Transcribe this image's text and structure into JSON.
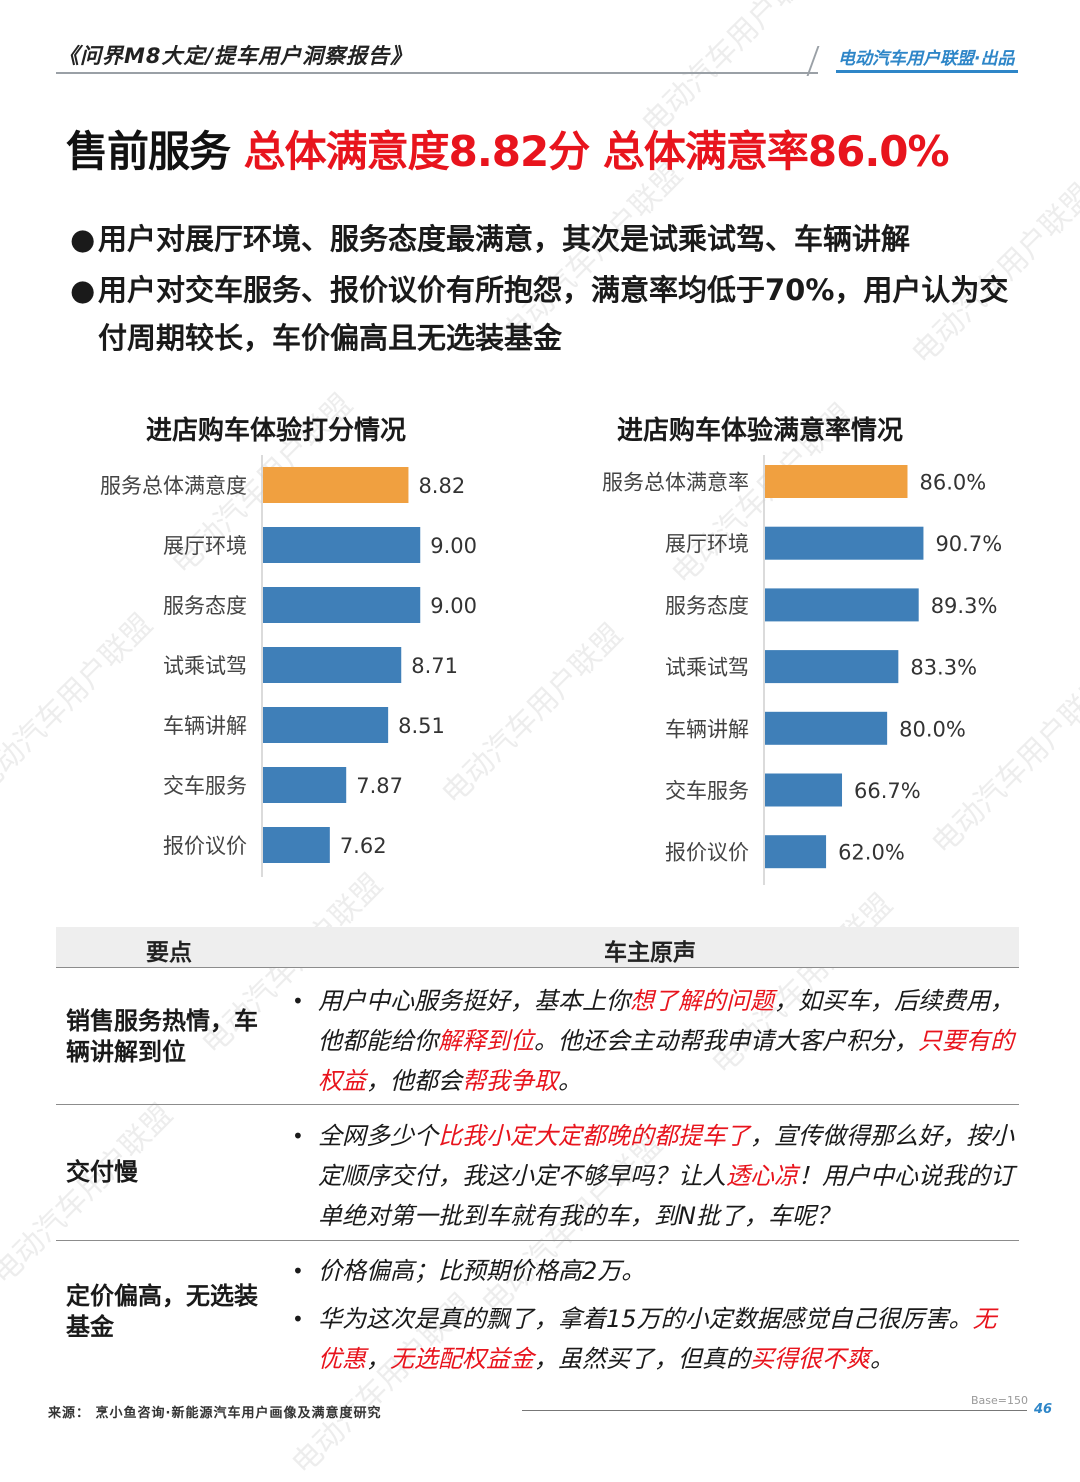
{
  "header": {
    "report_title": "《问界M8大定/提车用户洞察报告》",
    "brand": "电动汽车用户联盟·出品"
  },
  "headline": {
    "part1": "售前服务 ",
    "part2": "总体满意度8.82分 总体满意率86.0%"
  },
  "bullets": [
    "用户对展厅环境、服务态度最满意，其次是试乘试驾、车辆讲解",
    "用户对交车服务、报价议价有所抱怨，满意率均低于70%，用户认为交付周期较长，车价偏高且无选装基金"
  ],
  "bullet_symbol": "●",
  "chart_data": [
    {
      "type": "bar",
      "orientation": "horizontal",
      "title": "进店购车体验打分情况",
      "categories": [
        "服务总体满意度",
        "展厅环境",
        "服务态度",
        "试乘试驾",
        "车辆讲解",
        "交车服务",
        "报价议价"
      ],
      "values": [
        8.82,
        9.0,
        9.0,
        8.71,
        8.51,
        7.87,
        7.62
      ],
      "labels": [
        "8.82",
        "9.00",
        "9.00",
        "8.71",
        "8.51",
        "7.87",
        "7.62"
      ],
      "colors": [
        "#f0a040",
        "#3f7fb8",
        "#3f7fb8",
        "#3f7fb8",
        "#3f7fb8",
        "#3f7fb8",
        "#3f7fb8"
      ],
      "xlim": [
        6.6,
        9.5
      ],
      "grid": false,
      "legend": "none"
    },
    {
      "type": "bar",
      "orientation": "horizontal",
      "title": "进店购车体验满意率情况",
      "categories": [
        "服务总体满意率",
        "展厅环境",
        "服务态度",
        "试乘试驾",
        "车辆讲解",
        "交车服务",
        "报价议价"
      ],
      "values": [
        86.0,
        90.7,
        89.3,
        83.3,
        80.0,
        66.7,
        62.0
      ],
      "labels": [
        "86.0%",
        "90.7%",
        "89.3%",
        "83.3%",
        "80.0%",
        "66.7%",
        "62.0%"
      ],
      "colors": [
        "#f0a040",
        "#3f7fb8",
        "#3f7fb8",
        "#3f7fb8",
        "#3f7fb8",
        "#3f7fb8",
        "#3f7fb8"
      ],
      "xlim": [
        44,
        100
      ],
      "grid": false,
      "legend": "none"
    }
  ],
  "table": {
    "col_key": "要点",
    "col_quote": "车主原声",
    "bullet": "•",
    "rows": [
      {
        "key": "销售服务热情，车辆讲解到位",
        "quotes": [
          [
            {
              "t": "用户中心服务挺好，基本上你",
              "h": false
            },
            {
              "t": "想了解的问题",
              "h": true
            },
            {
              "t": "，如买车，后续费用，他都能给你",
              "h": false
            },
            {
              "t": "解释到位",
              "h": true
            },
            {
              "t": "。他还会主动帮我申请大客户积分，",
              "h": false
            },
            {
              "t": "只要有的权益",
              "h": true
            },
            {
              "t": "，他都会",
              "h": false
            },
            {
              "t": "帮我争取",
              "h": true
            },
            {
              "t": "。",
              "h": false
            }
          ]
        ]
      },
      {
        "key": "交付慢",
        "quotes": [
          [
            {
              "t": "全网多少个",
              "h": false
            },
            {
              "t": "比我小定大定都晚的都提车了",
              "h": true
            },
            {
              "t": "，宣传做得那么好，按小定顺序交付，我这小定不够早吗？让人",
              "h": false
            },
            {
              "t": "透心凉",
              "h": true
            },
            {
              "t": "！用户中心说我的订单绝对第一批到车就有我的车，到N批了，车呢？",
              "h": false
            }
          ]
        ]
      },
      {
        "key": "定价偏高，无选装基金",
        "quotes": [
          [
            {
              "t": "价格偏高；比预期价格高2万。",
              "h": false
            }
          ],
          [
            {
              "t": "华为这次是真的飘了，拿着15万的小定数据感觉自己很厉害。",
              "h": false
            },
            {
              "t": "无优惠",
              "h": true
            },
            {
              "t": "，",
              "h": false
            },
            {
              "t": "无选配权益金",
              "h": true
            },
            {
              "t": "，虽然买了，但真的",
              "h": false
            },
            {
              "t": "买得很不爽",
              "h": true
            },
            {
              "t": "。",
              "h": false
            }
          ]
        ]
      }
    ]
  },
  "footer": {
    "source": "来源：  烹小鱼咨询·新能源汽车用户画像及满意度研究",
    "base": "Base=150",
    "page": "46"
  },
  "watermark_text": "电动汽车用户联盟"
}
